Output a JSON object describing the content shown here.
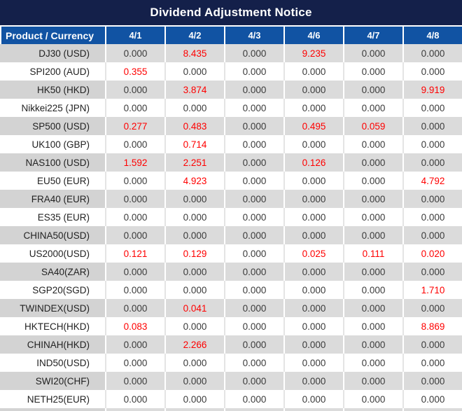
{
  "title": "Dividend Adjustment Notice",
  "colors": {
    "title_bg": "#14204A",
    "header_bg": "#1153A3",
    "row_gray": "#DBDBDB",
    "product_gray": "#D3D3D3",
    "highlight_red": "#FF0000",
    "text_dark": "#3B3B3B"
  },
  "table": {
    "product_header": "Product / Currency",
    "date_columns": [
      "4/1",
      "4/2",
      "4/3",
      "4/6",
      "4/7",
      "4/8"
    ],
    "rows": [
      {
        "product": "DJ30 (USD)",
        "values": [
          "0.000",
          "8.435",
          "0.000",
          "9.235",
          "0.000",
          "0.000"
        ],
        "red": [
          0,
          1,
          0,
          1,
          0,
          0
        ]
      },
      {
        "product": "SPI200 (AUD)",
        "values": [
          "0.355",
          "0.000",
          "0.000",
          "0.000",
          "0.000",
          "0.000"
        ],
        "red": [
          1,
          0,
          0,
          0,
          0,
          0
        ]
      },
      {
        "product": "HK50 (HKD)",
        "values": [
          "0.000",
          "3.874",
          "0.000",
          "0.000",
          "0.000",
          "9.919"
        ],
        "red": [
          0,
          1,
          0,
          0,
          0,
          1
        ]
      },
      {
        "product": "Nikkei225 (JPN)",
        "values": [
          "0.000",
          "0.000",
          "0.000",
          "0.000",
          "0.000",
          "0.000"
        ],
        "red": [
          0,
          0,
          0,
          0,
          0,
          0
        ]
      },
      {
        "product": "SP500 (USD)",
        "values": [
          "0.277",
          "0.483",
          "0.000",
          "0.495",
          "0.059",
          "0.000"
        ],
        "red": [
          1,
          1,
          0,
          1,
          1,
          0
        ]
      },
      {
        "product": "UK100 (GBP)",
        "values": [
          "0.000",
          "0.714",
          "0.000",
          "0.000",
          "0.000",
          "0.000"
        ],
        "red": [
          0,
          1,
          0,
          0,
          0,
          0
        ]
      },
      {
        "product": "NAS100 (USD)",
        "values": [
          "1.592",
          "2.251",
          "0.000",
          "0.126",
          "0.000",
          "0.000"
        ],
        "red": [
          1,
          1,
          0,
          1,
          0,
          0
        ]
      },
      {
        "product": "EU50 (EUR)",
        "values": [
          "0.000",
          "4.923",
          "0.000",
          "0.000",
          "0.000",
          "4.792"
        ],
        "red": [
          0,
          1,
          0,
          0,
          0,
          1
        ]
      },
      {
        "product": "FRA40 (EUR)",
        "values": [
          "0.000",
          "0.000",
          "0.000",
          "0.000",
          "0.000",
          "0.000"
        ],
        "red": [
          0,
          0,
          0,
          0,
          0,
          0
        ]
      },
      {
        "product": "ES35 (EUR)",
        "values": [
          "0.000",
          "0.000",
          "0.000",
          "0.000",
          "0.000",
          "0.000"
        ],
        "red": [
          0,
          0,
          0,
          0,
          0,
          0
        ]
      },
      {
        "product": "CHINA50(USD)",
        "values": [
          "0.000",
          "0.000",
          "0.000",
          "0.000",
          "0.000",
          "0.000"
        ],
        "red": [
          0,
          0,
          0,
          0,
          0,
          0
        ]
      },
      {
        "product": "US2000(USD)",
        "values": [
          "0.121",
          "0.129",
          "0.000",
          "0.025",
          "0.111",
          "0.020"
        ],
        "red": [
          1,
          1,
          0,
          1,
          1,
          1
        ]
      },
      {
        "product": "SA40(ZAR)",
        "values": [
          "0.000",
          "0.000",
          "0.000",
          "0.000",
          "0.000",
          "0.000"
        ],
        "red": [
          0,
          0,
          0,
          0,
          0,
          0
        ]
      },
      {
        "product": "SGP20(SGD)",
        "values": [
          "0.000",
          "0.000",
          "0.000",
          "0.000",
          "0.000",
          "1.710"
        ],
        "red": [
          0,
          0,
          0,
          0,
          0,
          1
        ]
      },
      {
        "product": "TWINDEX(USD)",
        "values": [
          "0.000",
          "0.041",
          "0.000",
          "0.000",
          "0.000",
          "0.000"
        ],
        "red": [
          0,
          1,
          0,
          0,
          0,
          0
        ]
      },
      {
        "product": "HKTECH(HKD)",
        "values": [
          "0.083",
          "0.000",
          "0.000",
          "0.000",
          "0.000",
          "8.869"
        ],
        "red": [
          1,
          0,
          0,
          0,
          0,
          1
        ]
      },
      {
        "product": "CHINAH(HKD)",
        "values": [
          "0.000",
          "2.266",
          "0.000",
          "0.000",
          "0.000",
          "0.000"
        ],
        "red": [
          0,
          1,
          0,
          0,
          0,
          0
        ]
      },
      {
        "product": "IND50(USD)",
        "values": [
          "0.000",
          "0.000",
          "0.000",
          "0.000",
          "0.000",
          "0.000"
        ],
        "red": [
          0,
          0,
          0,
          0,
          0,
          0
        ]
      },
      {
        "product": "SWI20(CHF)",
        "values": [
          "0.000",
          "0.000",
          "0.000",
          "0.000",
          "0.000",
          "0.000"
        ],
        "red": [
          0,
          0,
          0,
          0,
          0,
          0
        ]
      },
      {
        "product": "NETH25(EUR)",
        "values": [
          "0.000",
          "0.000",
          "0.000",
          "0.000",
          "0.000",
          "0.000"
        ],
        "red": [
          0,
          0,
          0,
          0,
          0,
          0
        ]
      }
    ]
  }
}
